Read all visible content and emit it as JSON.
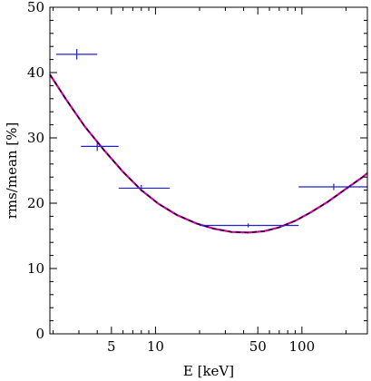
{
  "chart_data": {
    "type": "scatter",
    "xlabel": "E [keV]",
    "ylabel": "rms/mean [%]",
    "xscale": "log",
    "xlim": [
      1.9,
      280
    ],
    "ylim": [
      0,
      50
    ],
    "x_ticks": [
      5,
      10,
      50,
      100
    ],
    "x_tick_labels": [
      "5",
      "10",
      "50",
      "100"
    ],
    "y_ticks": [
      0,
      10,
      20,
      30,
      40,
      50
    ],
    "y_tick_labels": [
      "0",
      "10",
      "20",
      "30",
      "40",
      "50"
    ],
    "grid": false,
    "series": [
      {
        "kind": "errorbar",
        "color": "#2222cc",
        "points": [
          {
            "x": 2.9,
            "y": 42.8,
            "xerr": [
              2.1,
              4.0
            ],
            "yerr": 0.8
          },
          {
            "x": 4.0,
            "y": 28.7,
            "xerr": [
              3.1,
              5.6
            ],
            "yerr": 0.7
          },
          {
            "x": 8.0,
            "y": 22.3,
            "xerr": [
              5.6,
              12.5
            ],
            "yerr": 0.5
          },
          {
            "x": 43,
            "y": 16.6,
            "xerr": [
              20,
              95
            ],
            "yerr": 0.3
          },
          {
            "x": 165,
            "y": 22.5,
            "xerr": [
              95,
              280
            ],
            "yerr": 0.5
          }
        ]
      },
      {
        "kind": "line",
        "color": "#cc00aa",
        "style": "solid",
        "x": [
          1.9,
          2.5,
          3.3,
          4.5,
          6,
          8,
          10.5,
          14,
          19,
          25,
          33,
          43,
          55,
          70,
          90,
          115,
          150,
          200,
          260,
          280
        ],
        "y": [
          39.7,
          35.6,
          31.7,
          28.0,
          24.8,
          22.0,
          19.9,
          18.2,
          16.9,
          16.1,
          15.6,
          15.5,
          15.7,
          16.3,
          17.3,
          18.6,
          20.2,
          22.2,
          24.0,
          24.6
        ]
      },
      {
        "kind": "line",
        "color": "#000000",
        "style": "dashed",
        "x": [
          1.9,
          2.5,
          3.3,
          4.5,
          6,
          8,
          10.5,
          14,
          19,
          25,
          33,
          43,
          55,
          70,
          90,
          115,
          150,
          200,
          260,
          280
        ],
        "y": [
          39.7,
          35.6,
          31.7,
          28.0,
          24.8,
          22.0,
          19.9,
          18.2,
          16.9,
          16.1,
          15.6,
          15.5,
          15.7,
          16.3,
          17.3,
          18.6,
          20.2,
          22.2,
          24.0,
          24.6
        ]
      }
    ]
  }
}
